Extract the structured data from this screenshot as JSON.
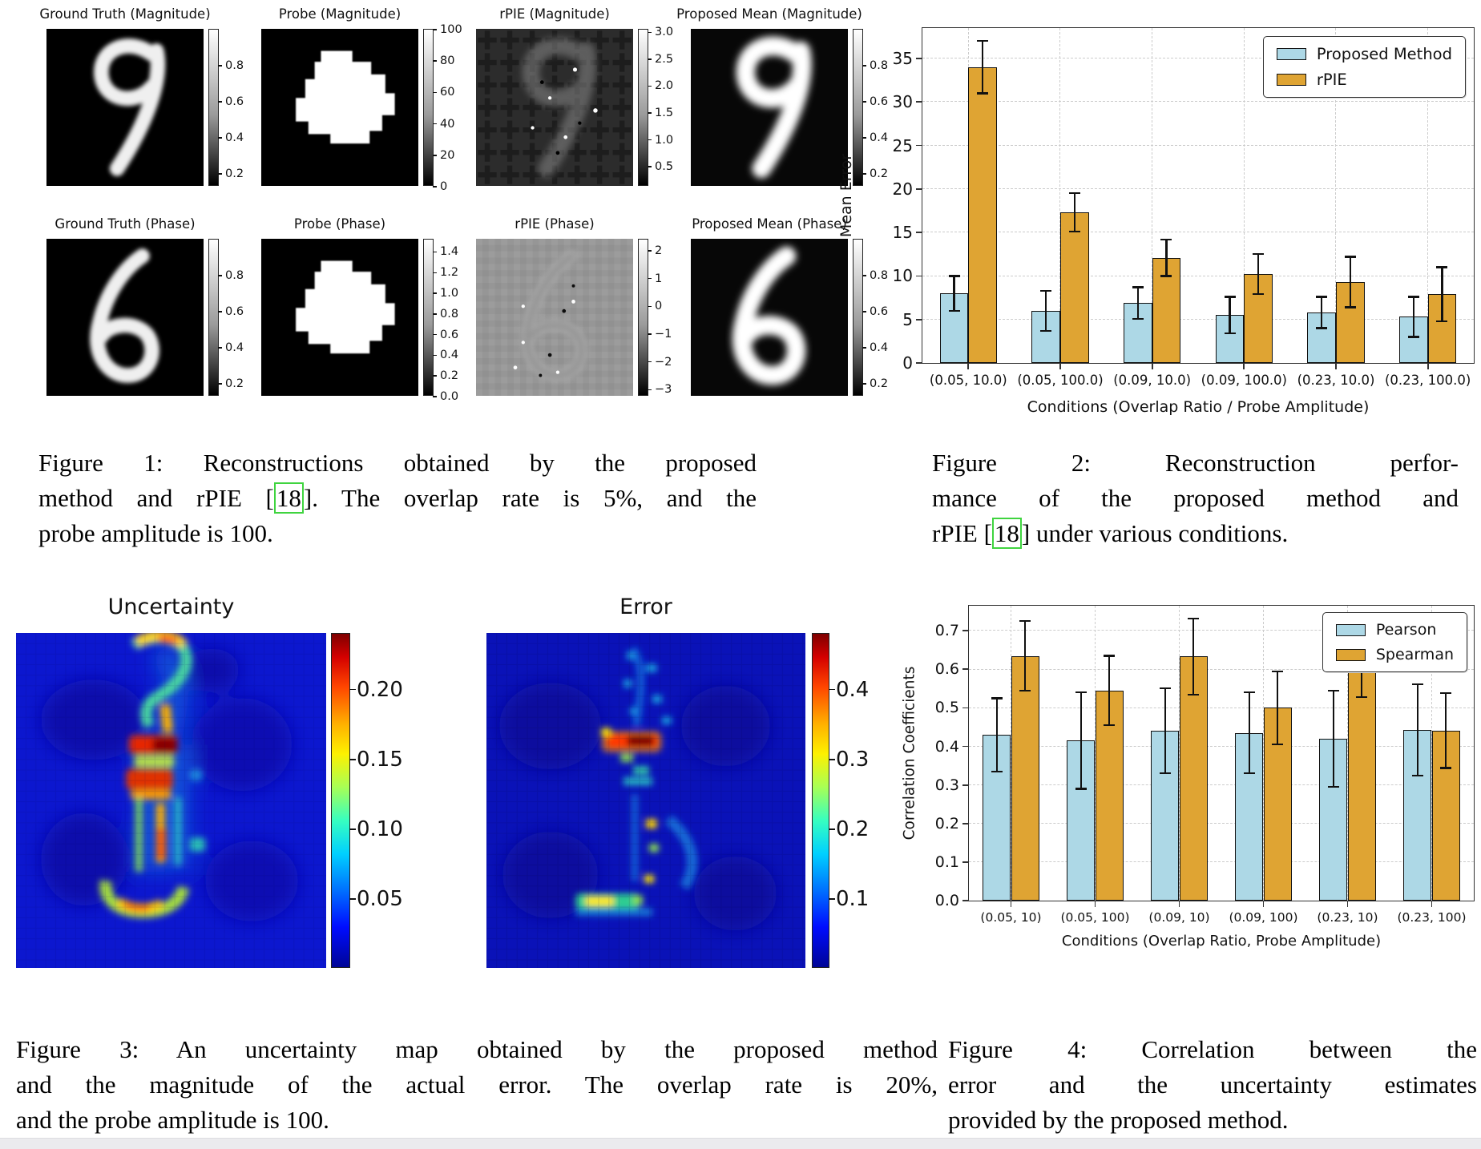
{
  "figure1": {
    "panels": [
      {
        "title": "Ground Truth (Magnitude)",
        "type": "digit9",
        "colorbar": {
          "min": 0.13,
          "max": 1.0,
          "ticks": [
            {
              "l": "0.8",
              "v": 0.8
            },
            {
              "l": "0.6",
              "v": 0.6
            },
            {
              "l": "0.4",
              "v": 0.4
            },
            {
              "l": "0.2",
              "v": 0.2
            }
          ]
        }
      },
      {
        "title": "Probe (Magnitude)",
        "type": "probe",
        "colorbar": {
          "min": 0,
          "max": 100,
          "ticks": [
            {
              "l": "100",
              "v": 100
            },
            {
              "l": "80",
              "v": 80
            },
            {
              "l": "60",
              "v": 60
            },
            {
              "l": "40",
              "v": 40
            },
            {
              "l": "20",
              "v": 20
            },
            {
              "l": "0",
              "v": 0
            }
          ]
        }
      },
      {
        "title": "rPIE (Magnitude)",
        "type": "rpie9",
        "colorbar": {
          "min": 0.13,
          "max": 3.05,
          "ticks": [
            {
              "l": "3.0",
              "v": 3.0
            },
            {
              "l": "2.5",
              "v": 2.5
            },
            {
              "l": "2.0",
              "v": 2.0
            },
            {
              "l": "1.5",
              "v": 1.5
            },
            {
              "l": "1.0",
              "v": 1.0
            },
            {
              "l": "0.5",
              "v": 0.5
            }
          ]
        }
      },
      {
        "title": "Proposed Mean (Magnitude)",
        "type": "digit9b",
        "colorbar": {
          "min": 0.13,
          "max": 1.0,
          "ticks": [
            {
              "l": "0.8",
              "v": 0.8
            },
            {
              "l": "0.6",
              "v": 0.6
            },
            {
              "l": "0.4",
              "v": 0.4
            },
            {
              "l": "0.2",
              "v": 0.2
            }
          ]
        }
      },
      {
        "title": "Ground Truth (Phase)",
        "type": "digit6",
        "colorbar": {
          "min": 0.13,
          "max": 1.0,
          "ticks": [
            {
              "l": "0.8",
              "v": 0.8
            },
            {
              "l": "0.6",
              "v": 0.6
            },
            {
              "l": "0.4",
              "v": 0.4
            },
            {
              "l": "0.2",
              "v": 0.2
            }
          ]
        }
      },
      {
        "title": "Probe (Phase)",
        "type": "probe",
        "colorbar": {
          "min": 0.0,
          "max": 1.52,
          "ticks": [
            {
              "l": "1.4",
              "v": 1.4
            },
            {
              "l": "1.2",
              "v": 1.2
            },
            {
              "l": "1.0",
              "v": 1.0
            },
            {
              "l": "0.8",
              "v": 0.8
            },
            {
              "l": "0.6",
              "v": 0.6
            },
            {
              "l": "0.4",
              "v": 0.4
            },
            {
              "l": "0.2",
              "v": 0.2
            },
            {
              "l": "0.0",
              "v": 0.0
            }
          ]
        }
      },
      {
        "title": "rPIE (Phase)",
        "type": "rpie6",
        "colorbar": {
          "min": -3.25,
          "max": 2.4,
          "ticks": [
            {
              "l": "2",
              "v": 2
            },
            {
              "l": "1",
              "v": 1
            },
            {
              "l": "0",
              "v": 0
            },
            {
              "l": "−1",
              "v": -1
            },
            {
              "l": "−2",
              "v": -2
            },
            {
              "l": "−3",
              "v": -3
            }
          ]
        }
      },
      {
        "title": "Proposed Mean (Phase)",
        "type": "digit6b",
        "colorbar": {
          "min": 0.13,
          "max": 1.0,
          "ticks": [
            {
              "l": "0.8",
              "v": 0.8
            },
            {
              "l": "0.6",
              "v": 0.6
            },
            {
              "l": "0.4",
              "v": 0.4
            },
            {
              "l": "0.2",
              "v": 0.2
            }
          ]
        }
      }
    ],
    "caption_lines": [
      "Figure 1:  Reconstructions obtained by the proposed",
      "method and rPIE [18].  The overlap rate is 5%, and the",
      "probe amplitude is 100."
    ]
  },
  "figure2": {
    "caption_lines": [
      "Figure 2:  Reconstruction perfor-",
      "mance of the proposed method and",
      "rPIE [18] under various conditions."
    ]
  },
  "figure3": {
    "uncertainty": {
      "title": "Uncertainty",
      "colorbar": {
        "min": 0.0,
        "max": 0.24,
        "ticks": [
          {
            "l": "0.20",
            "v": 0.2
          },
          {
            "l": "0.15",
            "v": 0.15
          },
          {
            "l": "0.10",
            "v": 0.1
          },
          {
            "l": "0.05",
            "v": 0.05
          }
        ]
      }
    },
    "error": {
      "title": "Error",
      "colorbar": {
        "min": 0.0,
        "max": 0.48,
        "ticks": [
          {
            "l": "0.4",
            "v": 0.4
          },
          {
            "l": "0.3",
            "v": 0.3
          },
          {
            "l": "0.2",
            "v": 0.2
          },
          {
            "l": "0.1",
            "v": 0.1
          }
        ]
      }
    },
    "caption_lines": [
      "Figure 3: An uncertainty map obtained by the proposed method",
      "and the magnitude of the actual error. The overlap rate is 20%,",
      "and the probe amplitude is 100."
    ]
  },
  "figure4": {
    "caption_lines": [
      "Figure 4: Correlation between the",
      "error and the uncertainty estimates",
      "provided by the proposed method."
    ]
  },
  "chart_data": [
    {
      "id": "figure2-chart",
      "type": "bar",
      "title": "",
      "categories": [
        "(0.05, 10.0)",
        "(0.05, 100.0)",
        "(0.09, 10.0)",
        "(0.09, 100.0)",
        "(0.23, 10.0)",
        "(0.23, 100.0)"
      ],
      "series": [
        {
          "name": "Proposed Method",
          "color": "#add8e6",
          "values": [
            8.0,
            6.0,
            6.9,
            5.5,
            5.8,
            5.3
          ],
          "errors": [
            2.0,
            2.3,
            1.8,
            2.1,
            1.8,
            2.3
          ]
        },
        {
          "name": "rPIE",
          "color": "#dfa433",
          "values": [
            34.0,
            17.3,
            12.1,
            10.2,
            9.3,
            7.9
          ],
          "errors": [
            3.0,
            2.2,
            2.1,
            2.3,
            2.9,
            3.1
          ]
        }
      ],
      "xlabel": "Conditions (Overlap Ratio / Probe Amplitude)",
      "ylabel": "Mean Error",
      "ylim": [
        0,
        38.5
      ],
      "yticks": [
        {
          "l": "0",
          "v": 0
        },
        {
          "l": "5",
          "v": 5
        },
        {
          "l": "10",
          "v": 10
        },
        {
          "l": "15",
          "v": 15
        },
        {
          "l": "20",
          "v": 20
        },
        {
          "l": "25",
          "v": 25
        },
        {
          "l": "30",
          "v": 30
        },
        {
          "l": "35",
          "v": 35
        }
      ],
      "grid": true,
      "legend_pos": "top-right"
    },
    {
      "id": "figure4-chart",
      "type": "bar",
      "title": "",
      "categories": [
        "(0.05, 10)",
        "(0.05, 100)",
        "(0.09, 10)",
        "(0.09, 100)",
        "(0.23, 10)",
        "(0.23, 100)"
      ],
      "series": [
        {
          "name": "Pearson",
          "color": "#add8e6",
          "values": [
            0.43,
            0.415,
            0.441,
            0.435,
            0.42,
            0.443
          ],
          "errors": [
            0.095,
            0.125,
            0.11,
            0.105,
            0.125,
            0.118
          ]
        },
        {
          "name": "Spearman",
          "color": "#dfa433",
          "values": [
            0.635,
            0.545,
            0.633,
            0.5,
            0.62,
            0.441
          ],
          "errors": [
            0.09,
            0.09,
            0.098,
            0.095,
            0.092,
            0.097
          ]
        }
      ],
      "xlabel": "Conditions (Overlap Ratio, Probe Amplitude)",
      "ylabel": "Correlation Coefficients",
      "ylim": [
        0,
        0.765
      ],
      "yticks": [
        {
          "l": "0.0",
          "v": 0.0
        },
        {
          "l": "0.1",
          "v": 0.1
        },
        {
          "l": "0.2",
          "v": 0.2
        },
        {
          "l": "0.3",
          "v": 0.3
        },
        {
          "l": "0.4",
          "v": 0.4
        },
        {
          "l": "0.5",
          "v": 0.5
        },
        {
          "l": "0.6",
          "v": 0.6
        },
        {
          "l": "0.7",
          "v": 0.7
        }
      ],
      "grid": true,
      "legend_pos": "top-right"
    }
  ]
}
